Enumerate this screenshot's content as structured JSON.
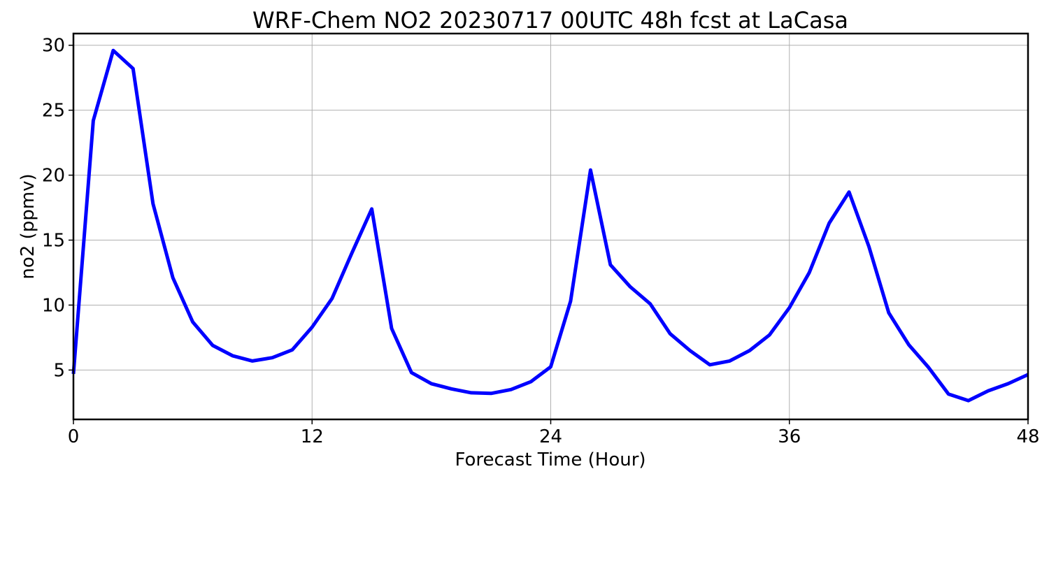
{
  "chart_data": {
    "type": "line",
    "title": "WRF-Chem NO2  20230717 00UTC 48h fcst at LaCasa",
    "xlabel": "Forecast Time (Hour)",
    "ylabel": "no2  (ppmv)",
    "xlim": [
      0,
      48
    ],
    "ylim": [
      1.2,
      30.9
    ],
    "xticks": [
      0,
      12,
      24,
      36,
      48
    ],
    "yticks": [
      5,
      10,
      15,
      20,
      25,
      30
    ],
    "grid": true,
    "series": [
      {
        "color": "#0000ff",
        "x": [
          0,
          1,
          2,
          3,
          4,
          5,
          6,
          7,
          8,
          9,
          10,
          11,
          12,
          13,
          14,
          15,
          16,
          17,
          18,
          19,
          20,
          21,
          22,
          23,
          24,
          25,
          26,
          27,
          28,
          29,
          30,
          31,
          32,
          33,
          34,
          35,
          36,
          37,
          38,
          39,
          40,
          41,
          42,
          43,
          44,
          45,
          46,
          47,
          48
        ],
        "y": [
          4.7,
          24.2,
          29.6,
          28.2,
          17.8,
          12.1,
          8.7,
          6.9,
          6.1,
          5.7,
          5.95,
          6.55,
          8.3,
          10.5,
          14.0,
          17.4,
          8.2,
          4.8,
          3.95,
          3.55,
          3.25,
          3.2,
          3.5,
          4.1,
          5.25,
          10.3,
          20.4,
          13.1,
          11.4,
          10.1,
          7.8,
          6.5,
          5.4,
          5.7,
          6.5,
          7.7,
          9.8,
          12.5,
          16.3,
          18.7,
          14.5,
          9.4,
          6.95,
          5.2,
          3.15,
          2.65,
          3.4,
          3.95,
          4.65
        ]
      }
    ]
  }
}
